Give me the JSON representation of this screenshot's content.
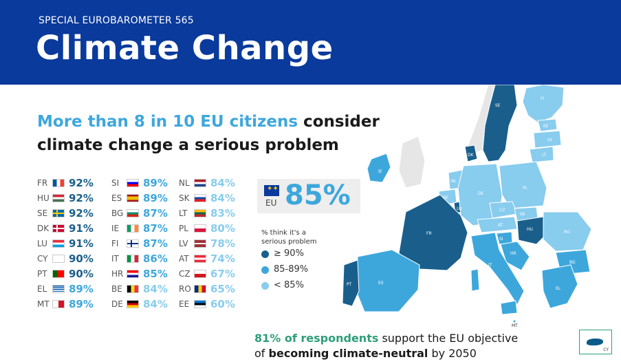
{
  "header": {
    "subtitle": "SPECIAL EUROBAROMETER 565",
    "title": "Climate Change"
  },
  "headline": {
    "highlight": "More than 8 in 10 EU citizens",
    "line1_rest": " consider",
    "line2": "climate change a serious problem"
  },
  "colors": {
    "dark": "#1a5f8c",
    "mid": "#3da7dc",
    "light": "#88ccee",
    "header_bg": "#0a3a9b",
    "green": "#2e9e7a"
  },
  "countries": [
    [
      {
        "code": "FR",
        "pct": "92%",
        "tier": "dark"
      },
      {
        "code": "HU",
        "pct": "92%",
        "tier": "dark"
      },
      {
        "code": "SE",
        "pct": "92%",
        "tier": "dark"
      },
      {
        "code": "DK",
        "pct": "91%",
        "tier": "dark"
      },
      {
        "code": "LU",
        "pct": "91%",
        "tier": "dark"
      },
      {
        "code": "CY",
        "pct": "90%",
        "tier": "dark"
      },
      {
        "code": "PT",
        "pct": "90%",
        "tier": "dark"
      },
      {
        "code": "EL",
        "pct": "89%",
        "tier": "mid"
      },
      {
        "code": "MT",
        "pct": "89%",
        "tier": "mid"
      }
    ],
    [
      {
        "code": "SI",
        "pct": "89%",
        "tier": "mid"
      },
      {
        "code": "ES",
        "pct": "89%",
        "tier": "mid"
      },
      {
        "code": "BG",
        "pct": "87%",
        "tier": "mid"
      },
      {
        "code": "IE",
        "pct": "87%",
        "tier": "mid"
      },
      {
        "code": "FI",
        "pct": "87%",
        "tier": "mid"
      },
      {
        "code": "IT",
        "pct": "86%",
        "tier": "mid"
      },
      {
        "code": "HR",
        "pct": "85%",
        "tier": "mid"
      },
      {
        "code": "BE",
        "pct": "84%",
        "tier": "light"
      },
      {
        "code": "DE",
        "pct": "84%",
        "tier": "light"
      }
    ],
    [
      {
        "code": "NL",
        "pct": "84%",
        "tier": "light"
      },
      {
        "code": "SK",
        "pct": "84%",
        "tier": "light"
      },
      {
        "code": "LT",
        "pct": "83%",
        "tier": "light"
      },
      {
        "code": "PL",
        "pct": "80%",
        "tier": "light"
      },
      {
        "code": "LV",
        "pct": "78%",
        "tier": "light"
      },
      {
        "code": "AT",
        "pct": "74%",
        "tier": "light"
      },
      {
        "code": "CZ",
        "pct": "67%",
        "tier": "light"
      },
      {
        "code": "RO",
        "pct": "65%",
        "tier": "light"
      },
      {
        "code": "EE",
        "pct": "60%",
        "tier": "light"
      }
    ]
  ],
  "eu_summary": {
    "label": "EU",
    "pct": "85%"
  },
  "legend": {
    "caption": "% think it's a serious problem",
    "items": [
      {
        "label": "≥ 90%",
        "tier": "dark"
      },
      {
        "label": "85-89%",
        "tier": "mid"
      },
      {
        "label": "< 85%",
        "tier": "light"
      }
    ]
  },
  "bottom": {
    "green": "81% of respondents",
    "rest1": " support the EU objective",
    "line2_pre": "of ",
    "line2_bold": "becoming climate-neutral",
    "line2_post": " by 2050"
  },
  "map_labels": [
    "SE",
    "FI",
    "EE",
    "LV",
    "LT",
    "DK",
    "IE",
    "NL",
    "BE",
    "LU",
    "DE",
    "PL",
    "CZ",
    "SK",
    "AT",
    "HU",
    "FR",
    "SI",
    "HR",
    "RO",
    "BG",
    "IT",
    "PT",
    "ES",
    "EL",
    "MT",
    "CY"
  ]
}
